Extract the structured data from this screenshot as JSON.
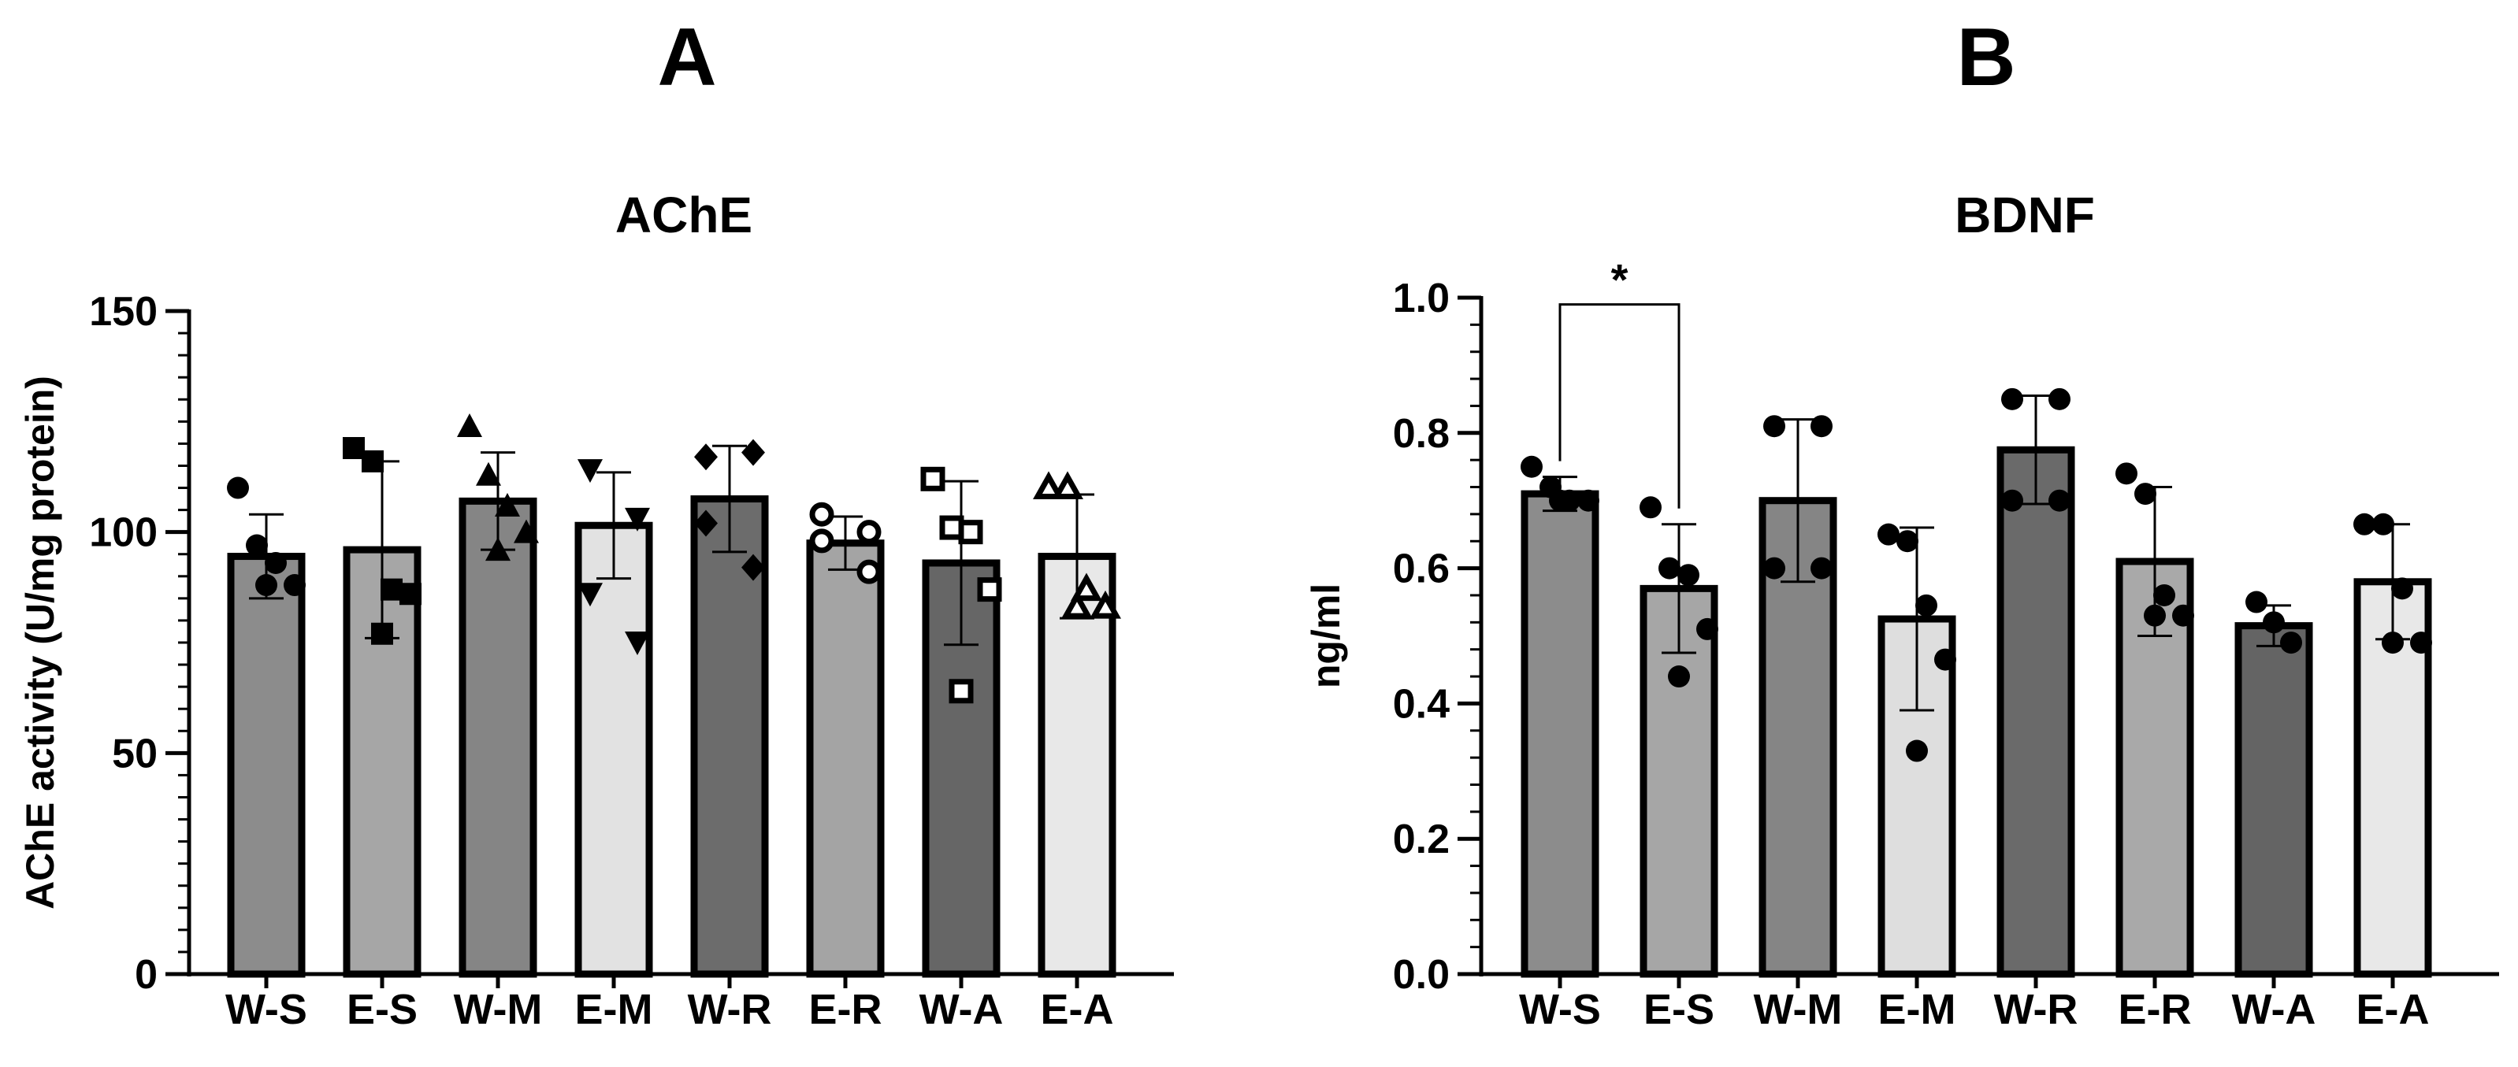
{
  "panels": [
    {
      "letter": "A"
    },
    {
      "letter": "B"
    }
  ],
  "chart_data": [
    {
      "type": "bar",
      "panel": "A",
      "title": "AChE",
      "xlabel": "",
      "ylabel": "AChE activity (U/mg protein)",
      "ylim": [
        0,
        150
      ],
      "yticks": [
        0,
        50,
        100,
        150
      ],
      "ytick_labels": [
        "0",
        "50",
        "100",
        "150"
      ],
      "minor_tick_step": 5,
      "categories": [
        "W-S",
        "E-S",
        "W-M",
        "E-M",
        "W-R",
        "E-R",
        "W-A",
        "E-A"
      ],
      "values": [
        94.5,
        96,
        107,
        101.5,
        107.5,
        97.5,
        93,
        94.5
      ],
      "sd": [
        9.5,
        20,
        11,
        12,
        12,
        6,
        18.5,
        14
      ],
      "bar_colors": [
        "#8c8c8c",
        "#a6a6a6",
        "#858585",
        "#e2e2e2",
        "#6c6c6c",
        "#a4a4a4",
        "#666666",
        "#e8e8e8"
      ],
      "marker_shapes": [
        "circle",
        "square",
        "triangle",
        "triangle-down",
        "diamond",
        "circle-open",
        "square-open",
        "triangle-open"
      ],
      "points": [
        [
          110,
          97,
          93,
          88,
          88
        ],
        [
          119,
          116,
          87,
          86,
          77
        ],
        [
          124,
          113,
          106,
          100,
          96
        ],
        [
          114,
          103,
          86,
          75
        ],
        [
          117,
          118,
          102,
          92
        ],
        [
          104,
          100,
          98,
          91
        ],
        [
          112,
          101,
          100,
          87,
          64
        ],
        [
          110,
          110,
          87,
          83,
          83
        ]
      ]
    },
    {
      "type": "bar",
      "panel": "B",
      "title": "BDNF",
      "xlabel": "",
      "ylabel": "ng/ml",
      "ylim": [
        0,
        1.0
      ],
      "yticks": [
        0,
        0.2,
        0.4,
        0.6,
        0.8,
        1.0
      ],
      "ytick_labels": [
        "0.0",
        "0.2",
        "0.4",
        "0.6",
        "0.8",
        "1.0"
      ],
      "minor_tick_step": 0.04,
      "categories": [
        "W-S",
        "E-S",
        "W-M",
        "E-M",
        "W-R",
        "E-R",
        "W-A",
        "E-A"
      ],
      "values": [
        0.71,
        0.57,
        0.7,
        0.525,
        0.775,
        0.61,
        0.515,
        0.58
      ],
      "sd": [
        0.025,
        0.095,
        0.12,
        0.135,
        0.08,
        0.11,
        0.03,
        0.085
      ],
      "bar_colors": [
        "#8c8c8c",
        "#a6a6a6",
        "#858585",
        "#dedede",
        "#6a6a6a",
        "#a9a9a9",
        "#646464",
        "#e8e8e8"
      ],
      "marker_shapes": [
        "circle",
        "circle",
        "circle",
        "circle",
        "circle",
        "circle",
        "circle",
        "circle"
      ],
      "points": [
        [
          0.75,
          0.72,
          0.7,
          0.7,
          0.7
        ],
        [
          0.69,
          0.6,
          0.59,
          0.51,
          0.44
        ],
        [
          0.81,
          0.81,
          0.6,
          0.6
        ],
        [
          0.65,
          0.64,
          0.545,
          0.465,
          0.33
        ],
        [
          0.85,
          0.85,
          0.7,
          0.7
        ],
        [
          0.74,
          0.71,
          0.56,
          0.53,
          0.53
        ],
        [
          0.55,
          0.52,
          0.49
        ],
        [
          0.665,
          0.665,
          0.57,
          0.49,
          0.49
        ]
      ],
      "significance": {
        "from": "W-S",
        "to": "E-S",
        "label": "*",
        "at": 0.99
      }
    }
  ]
}
